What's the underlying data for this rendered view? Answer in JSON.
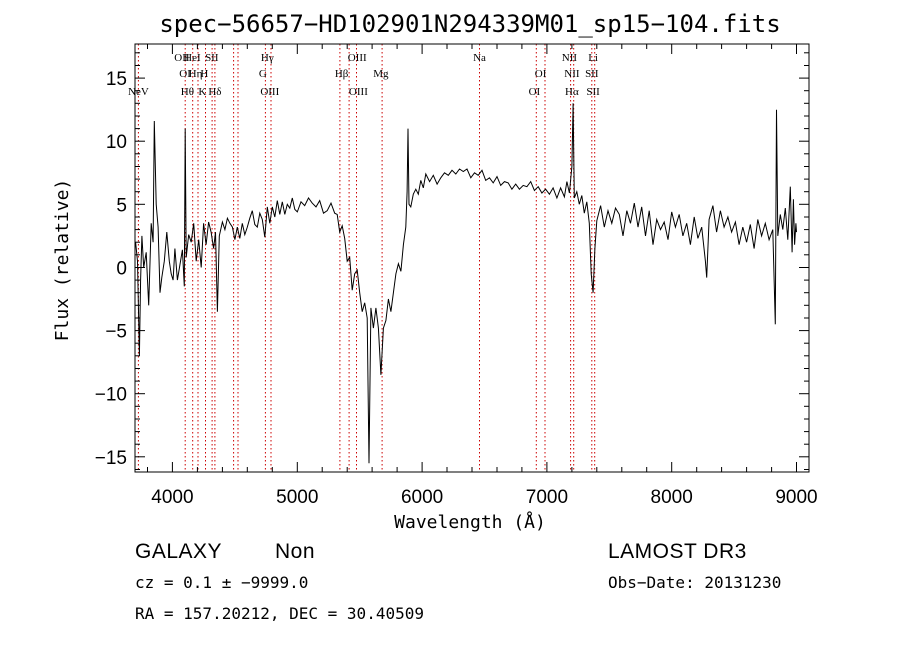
{
  "chart_data": {
    "type": "line",
    "title": "spec−56657−HD102901N294339M01_sp15−104.fits",
    "xlabel": "Wavelength (Å)",
    "ylabel": "Flux (relative)",
    "xlim": [
      3700,
      9100
    ],
    "ylim": [
      -16.2,
      17.7
    ],
    "xticks": [
      4000,
      5000,
      6000,
      7000,
      8000,
      9000
    ],
    "yticks": [
      -15,
      -10,
      -5,
      0,
      5,
      10,
      15
    ],
    "line_color": "#000000",
    "marker_color": "#cc0000",
    "grid": false,
    "spectrum_points": [
      [
        3705,
        2
      ],
      [
        3720,
        0.5
      ],
      [
        3735,
        -7
      ],
      [
        3745,
        -1
      ],
      [
        3755,
        2.5
      ],
      [
        3770,
        0
      ],
      [
        3790,
        1.2
      ],
      [
        3810,
        -3
      ],
      [
        3830,
        3.5
      ],
      [
        3845,
        2
      ],
      [
        3855,
        11.6
      ],
      [
        3870,
        5
      ],
      [
        3885,
        3.2
      ],
      [
        3900,
        -2
      ],
      [
        3915,
        -0.8
      ],
      [
        3935,
        0.5
      ],
      [
        3955,
        2.8
      ],
      [
        3975,
        0.5
      ],
      [
        3990,
        -0.5
      ],
      [
        4005,
        -1
      ],
      [
        4020,
        1.5
      ],
      [
        4040,
        -1
      ],
      [
        4060,
        0.2
      ],
      [
        4080,
        1.4
      ],
      [
        4095,
        -1.5
      ],
      [
        4102,
        11
      ],
      [
        4110,
        0.8
      ],
      [
        4130,
        2.6
      ],
      [
        4150,
        2
      ],
      [
        4170,
        3.5
      ],
      [
        4190,
        0.5
      ],
      [
        4210,
        2.2
      ],
      [
        4230,
        0
      ],
      [
        4250,
        3.5
      ],
      [
        4270,
        1.8
      ],
      [
        4290,
        3.6
      ],
      [
        4310,
        2.8
      ],
      [
        4330,
        1.5
      ],
      [
        4345,
        2.8
      ],
      [
        4360,
        -3.5
      ],
      [
        4375,
        2.5
      ],
      [
        4400,
        3.6
      ],
      [
        4420,
        3
      ],
      [
        4440,
        3.9
      ],
      [
        4460,
        3.5
      ],
      [
        4480,
        3.2
      ],
      [
        4500,
        2.2
      ],
      [
        4520,
        3.2
      ],
      [
        4540,
        2.3
      ],
      [
        4560,
        3.5
      ],
      [
        4580,
        2.6
      ],
      [
        4600,
        3.2
      ],
      [
        4620,
        3.9
      ],
      [
        4640,
        4.5
      ],
      [
        4660,
        3.4
      ],
      [
        4680,
        3.2
      ],
      [
        4700,
        4.3
      ],
      [
        4720,
        3.8
      ],
      [
        4740,
        2.4
      ],
      [
        4760,
        4.8
      ],
      [
        4780,
        3.5
      ],
      [
        4800,
        4.8
      ],
      [
        4820,
        4
      ],
      [
        4840,
        5.3
      ],
      [
        4860,
        4.2
      ],
      [
        4880,
        5.2
      ],
      [
        4900,
        4.2
      ],
      [
        4920,
        5
      ],
      [
        4940,
        4.7
      ],
      [
        4960,
        5.5
      ],
      [
        4980,
        4.6
      ],
      [
        5000,
        4.4
      ],
      [
        5030,
        5.2
      ],
      [
        5060,
        4.9
      ],
      [
        5090,
        5.5
      ],
      [
        5120,
        5.1
      ],
      [
        5150,
        4.8
      ],
      [
        5180,
        5.3
      ],
      [
        5210,
        4.3
      ],
      [
        5240,
        4.5
      ],
      [
        5270,
        5.1
      ],
      [
        5300,
        4.3
      ],
      [
        5320,
        4.2
      ],
      [
        5340,
        2.8
      ],
      [
        5360,
        3.3
      ],
      [
        5380,
        2.3
      ],
      [
        5400,
        0.5
      ],
      [
        5420,
        0.8
      ],
      [
        5440,
        -1.8
      ],
      [
        5460,
        -0.5
      ],
      [
        5480,
        -0.2
      ],
      [
        5500,
        -2
      ],
      [
        5520,
        -3.5
      ],
      [
        5540,
        -2.8
      ],
      [
        5560,
        -4
      ],
      [
        5575,
        -15.5
      ],
      [
        5590,
        -3.2
      ],
      [
        5610,
        -4.8
      ],
      [
        5630,
        -3.2
      ],
      [
        5650,
        -4.8
      ],
      [
        5670,
        -8.5
      ],
      [
        5690,
        -4.8
      ],
      [
        5710,
        -4.2
      ],
      [
        5730,
        -2.5
      ],
      [
        5750,
        -3.5
      ],
      [
        5770,
        -2
      ],
      [
        5790,
        -0.5
      ],
      [
        5810,
        0.3
      ],
      [
        5830,
        -0.3
      ],
      [
        5850,
        1.8
      ],
      [
        5870,
        3.2
      ],
      [
        5880,
        6
      ],
      [
        5887,
        11
      ],
      [
        5895,
        5
      ],
      [
        5910,
        4.8
      ],
      [
        5930,
        5.8
      ],
      [
        5950,
        6.2
      ],
      [
        5970,
        5.8
      ],
      [
        5990,
        6.9
      ],
      [
        6010,
        6.3
      ],
      [
        6030,
        7.4
      ],
      [
        6060,
        6.8
      ],
      [
        6090,
        7.3
      ],
      [
        6120,
        6.6
      ],
      [
        6150,
        7.1
      ],
      [
        6180,
        7.5
      ],
      [
        6210,
        7.3
      ],
      [
        6240,
        7.7
      ],
      [
        6270,
        7.4
      ],
      [
        6300,
        7.8
      ],
      [
        6330,
        7.6
      ],
      [
        6360,
        7.8
      ],
      [
        6390,
        7.1
      ],
      [
        6420,
        7.5
      ],
      [
        6450,
        7.3
      ],
      [
        6480,
        7.7
      ],
      [
        6510,
        6.9
      ],
      [
        6540,
        7.1
      ],
      [
        6570,
        6.7
      ],
      [
        6600,
        7.2
      ],
      [
        6630,
        6.5
      ],
      [
        6660,
        6.8
      ],
      [
        6690,
        6.7
      ],
      [
        6720,
        6.2
      ],
      [
        6750,
        6.6
      ],
      [
        6780,
        6.2
      ],
      [
        6810,
        6.5
      ],
      [
        6840,
        6.4
      ],
      [
        6870,
        6.8
      ],
      [
        6900,
        6.1
      ],
      [
        6930,
        6.4
      ],
      [
        6960,
        5.9
      ],
      [
        6990,
        6.2
      ],
      [
        7020,
        5.8
      ],
      [
        7050,
        6.3
      ],
      [
        7080,
        5.5
      ],
      [
        7110,
        6.3
      ],
      [
        7140,
        5.6
      ],
      [
        7160,
        6.8
      ],
      [
        7180,
        5.9
      ],
      [
        7200,
        8
      ],
      [
        7210,
        13
      ],
      [
        7220,
        5.5
      ],
      [
        7240,
        6
      ],
      [
        7260,
        5
      ],
      [
        7280,
        5.7
      ],
      [
        7300,
        4.3
      ],
      [
        7320,
        5.2
      ],
      [
        7340,
        3.5
      ],
      [
        7355,
        -0.5
      ],
      [
        7370,
        -2
      ],
      [
        7385,
        1.5
      ],
      [
        7400,
        3.7
      ],
      [
        7430,
        4.9
      ],
      [
        7460,
        3.2
      ],
      [
        7490,
        4.5
      ],
      [
        7520,
        3.5
      ],
      [
        7550,
        4.7
      ],
      [
        7580,
        4.2
      ],
      [
        7610,
        2.5
      ],
      [
        7640,
        4.5
      ],
      [
        7670,
        3.5
      ],
      [
        7700,
        5.1
      ],
      [
        7730,
        3.2
      ],
      [
        7760,
        4.8
      ],
      [
        7790,
        2.5
      ],
      [
        7820,
        4.5
      ],
      [
        7850,
        1.8
      ],
      [
        7880,
        3.8
      ],
      [
        7910,
        3
      ],
      [
        7940,
        3.6
      ],
      [
        7970,
        2.2
      ],
      [
        8000,
        4.4
      ],
      [
        8030,
        3.2
      ],
      [
        8060,
        4.2
      ],
      [
        8090,
        2.5
      ],
      [
        8120,
        3.5
      ],
      [
        8150,
        1.8
      ],
      [
        8180,
        4
      ],
      [
        8210,
        2.3
      ],
      [
        8240,
        3.2
      ],
      [
        8270,
        0.5
      ],
      [
        8280,
        -0.8
      ],
      [
        8300,
        3.8
      ],
      [
        8330,
        4.9
      ],
      [
        8360,
        2.8
      ],
      [
        8390,
        4.5
      ],
      [
        8420,
        3.2
      ],
      [
        8450,
        4
      ],
      [
        8480,
        2.8
      ],
      [
        8510,
        3.6
      ],
      [
        8540,
        1.8
      ],
      [
        8570,
        3.2
      ],
      [
        8600,
        2
      ],
      [
        8630,
        3.4
      ],
      [
        8660,
        1.5
      ],
      [
        8690,
        3.8
      ],
      [
        8720,
        2.5
      ],
      [
        8750,
        3.5
      ],
      [
        8780,
        2.2
      ],
      [
        8810,
        3
      ],
      [
        8830,
        -4.5
      ],
      [
        8840,
        12.5
      ],
      [
        8850,
        2.5
      ],
      [
        8870,
        4.2
      ],
      [
        8890,
        3
      ],
      [
        8910,
        4.7
      ],
      [
        8930,
        2.2
      ],
      [
        8950,
        6.4
      ],
      [
        8965,
        1.2
      ],
      [
        8975,
        5.4
      ],
      [
        8985,
        1.8
      ],
      [
        8995,
        3.5
      ],
      [
        9000,
        2.8
      ]
    ],
    "reference_lines": [
      {
        "label": "NeV",
        "x": 3727,
        "row": 2
      },
      {
        "label": "OII",
        "x": 4076,
        "row": 0
      },
      {
        "label": "OI",
        "x": 4101,
        "row": 1
      },
      {
        "label": "Hθ",
        "x": 4120,
        "row": 2
      },
      {
        "label": "HeI",
        "x": 4160,
        "row": 0
      },
      {
        "label": "Hη",
        "x": 4185,
        "row": 1
      },
      {
        "label": "H",
        "x": 4255,
        "row": 1
      },
      {
        "label": "K",
        "x": 4240,
        "row": 2
      },
      {
        "label": "SII",
        "x": 4315,
        "row": 0
      },
      {
        "label": "Hδ",
        "x": 4340,
        "row": 2
      },
      {
        "label": "Hγ",
        "x": 4760,
        "row": 0
      },
      {
        "label": "G",
        "x": 4725,
        "row": 1
      },
      {
        "label": "OIII",
        "x": 4780,
        "row": 2
      },
      {
        "label": "OIII",
        "x": 5480,
        "row": 0
      },
      {
        "label": "Hβ",
        "x": 5355,
        "row": 1
      },
      {
        "label": "OIII",
        "x": 5490,
        "row": 2
      },
      {
        "label": "Mg",
        "x": 5670,
        "row": 1
      },
      {
        "label": "Na",
        "x": 6460,
        "row": 0
      },
      {
        "label": "OI",
        "x": 6950,
        "row": 1
      },
      {
        "label": "OI",
        "x": 6900,
        "row": 2
      },
      {
        "label": "NII",
        "x": 7180,
        "row": 0
      },
      {
        "label": "Li",
        "x": 7370,
        "row": 0
      },
      {
        "label": "NII",
        "x": 7200,
        "row": 1
      },
      {
        "label": "SII",
        "x": 7360,
        "row": 1
      },
      {
        "label": "Hα",
        "x": 7200,
        "row": 2
      },
      {
        "label": "SII",
        "x": 7370,
        "row": 2
      }
    ],
    "marker_positions": [
      3727,
      4102,
      4162,
      4205,
      4265,
      4318,
      4340,
      4490,
      4525,
      4745,
      4790,
      5342,
      5415,
      5475,
      5680,
      6460,
      6915,
      6985,
      7190,
      7215,
      7360,
      7383
    ]
  },
  "info": {
    "object_class": "GALAXY",
    "subclass": "Non",
    "survey": "LAMOST DR3",
    "cz": "cz = 0.1 ± −9999.0",
    "obs_date": "Obs−Date: 20131230",
    "radec": "RA = 157.20212, DEC =  30.40509"
  }
}
